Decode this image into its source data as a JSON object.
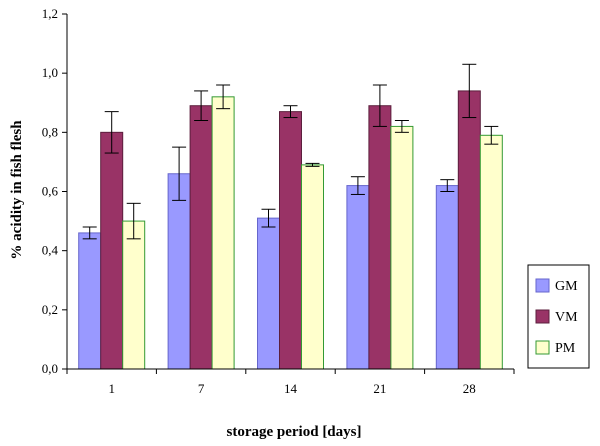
{
  "chart_data": {
    "type": "bar",
    "title": "",
    "xlabel": "storage period [days]",
    "ylabel": "% acidity in fish flesh",
    "ylim": [
      0,
      1.2
    ],
    "yticks": [
      "0,0",
      "0,2",
      "0,4",
      "0,6",
      "0,8",
      "1,0",
      "1,2"
    ],
    "grid": false,
    "legend_position": "right",
    "categories": [
      "1",
      "7",
      "14",
      "21",
      "28"
    ],
    "series": [
      {
        "name": "GM",
        "color": "#9999ff",
        "values": [
          0.46,
          0.66,
          0.51,
          0.62,
          0.62
        ],
        "errors": [
          0.02,
          0.09,
          0.03,
          0.03,
          0.02
        ]
      },
      {
        "name": "VM",
        "color": "#993366",
        "values": [
          0.8,
          0.89,
          0.87,
          0.89,
          0.94
        ],
        "errors": [
          0.07,
          0.05,
          0.02,
          0.07,
          0.09
        ]
      },
      {
        "name": "PM",
        "color": "#ffffcc",
        "values": [
          0.5,
          0.92,
          0.69,
          0.82,
          0.79
        ],
        "errors": [
          0.06,
          0.04,
          0.005,
          0.02,
          0.03
        ]
      }
    ]
  }
}
